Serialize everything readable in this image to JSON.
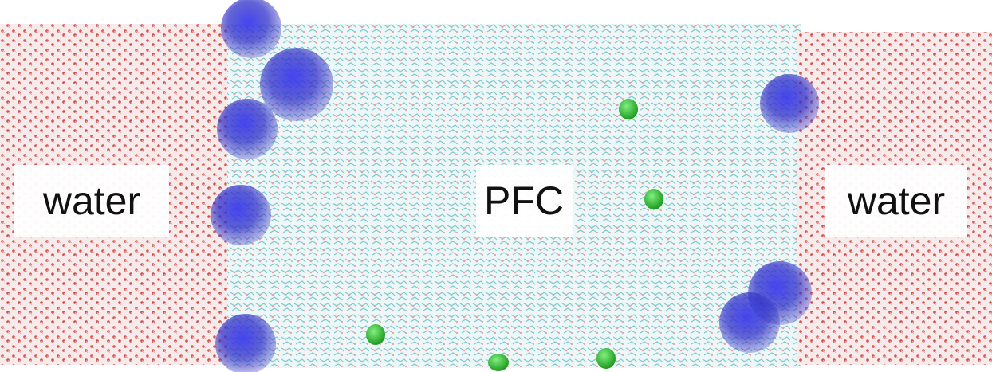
{
  "regions": [
    {
      "label": "water"
    },
    {
      "label": "PFC"
    },
    {
      "label": "water"
    }
  ]
}
